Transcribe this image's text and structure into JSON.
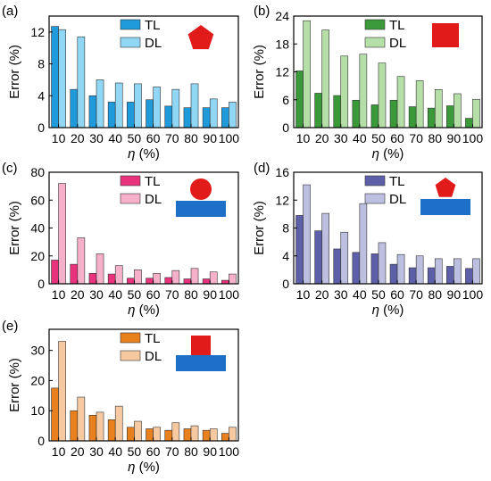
{
  "chart_data": [
    {
      "panel_label": "(a)",
      "type": "bar",
      "icon": "red-pentagon",
      "categories": [
        "10",
        "20",
        "30",
        "40",
        "50",
        "60",
        "70",
        "80",
        "90",
        "100"
      ],
      "series": [
        {
          "name": "TL",
          "values": [
            12.7,
            4.8,
            4.0,
            3.2,
            3.2,
            3.5,
            2.7,
            2.5,
            2.5,
            2.5
          ],
          "color": "#1f9bdc"
        },
        {
          "name": "DL",
          "values": [
            12.3,
            11.4,
            6.0,
            5.6,
            5.5,
            5.1,
            4.8,
            5.5,
            3.6,
            3.2
          ],
          "color": "#8fd7f5"
        }
      ],
      "xlabel_symbol": "η",
      "xlabel_unit": "(%)",
      "ylabel": "Error (%)",
      "ylim": [
        0,
        14
      ],
      "yticks": [
        "0",
        "4",
        "8",
        "12"
      ],
      "ytick_values": [
        0,
        4,
        8,
        12
      ]
    },
    {
      "panel_label": "(b)",
      "type": "bar",
      "icon": "red-square",
      "categories": [
        "10",
        "20",
        "30",
        "40",
        "50",
        "60",
        "70",
        "80",
        "90",
        "100"
      ],
      "series": [
        {
          "name": "TL",
          "values": [
            12.2,
            7.4,
            6.9,
            5.9,
            4.9,
            5.9,
            4.5,
            4.2,
            4.7,
            2.0
          ],
          "color": "#3a9a3a"
        },
        {
          "name": "DL",
          "values": [
            23.0,
            21.0,
            15.4,
            15.8,
            13.9,
            11.0,
            10.1,
            8.2,
            7.3,
            6.1
          ],
          "color": "#b6dfa8"
        }
      ],
      "xlabel_symbol": "η",
      "xlabel_unit": "(%)",
      "ylabel": "Error (%)",
      "ylim": [
        0,
        24
      ],
      "yticks": [
        "0",
        "6",
        "12",
        "18",
        "24"
      ],
      "ytick_values": [
        0,
        6,
        12,
        18,
        24
      ]
    },
    {
      "panel_label": "(c)",
      "type": "bar",
      "icon": "red-circle-on-blue-plate",
      "categories": [
        "10",
        "20",
        "30",
        "40",
        "50",
        "60",
        "70",
        "80",
        "90",
        "100"
      ],
      "series": [
        {
          "name": "TL",
          "values": [
            17.0,
            14.0,
            7.5,
            7.0,
            4.0,
            4.0,
            4.5,
            3.5,
            3.5,
            2.5
          ],
          "color": "#e8327c"
        },
        {
          "name": "DL",
          "values": [
            72.0,
            33.0,
            21.5,
            13.0,
            10.0,
            7.5,
            9.5,
            11.0,
            8.5,
            7.0
          ],
          "color": "#f6b0ca"
        }
      ],
      "xlabel_symbol": "η",
      "xlabel_unit": "(%)",
      "ylabel": "Error (%)",
      "ylim": [
        0,
        80
      ],
      "yticks": [
        "0",
        "20",
        "40",
        "60",
        "80"
      ],
      "ytick_values": [
        0,
        20,
        40,
        60,
        80
      ]
    },
    {
      "panel_label": "(d)",
      "type": "bar",
      "icon": "red-pentagon-on-blue-plate",
      "categories": [
        "10",
        "20",
        "30",
        "40",
        "50",
        "60",
        "70",
        "80",
        "90",
        "100"
      ],
      "series": [
        {
          "name": "TL",
          "values": [
            9.8,
            7.6,
            5.0,
            4.5,
            4.3,
            2.8,
            2.3,
            2.3,
            2.5,
            2.2
          ],
          "color": "#5d5fa8"
        },
        {
          "name": "DL",
          "values": [
            14.2,
            10.1,
            7.4,
            11.5,
            5.9,
            4.2,
            4.0,
            3.6,
            3.6,
            3.6
          ],
          "color": "#bcbfe0"
        }
      ],
      "xlabel_symbol": "η",
      "xlabel_unit": "(%)",
      "ylabel": "Error (%)",
      "ylim": [
        0,
        16
      ],
      "yticks": [
        "0",
        "4",
        "8",
        "12",
        "16"
      ],
      "ytick_values": [
        0,
        4,
        8,
        12,
        16
      ]
    },
    {
      "panel_label": "(e)",
      "type": "bar",
      "icon": "red-square-on-blue-plate",
      "categories": [
        "10",
        "20",
        "30",
        "40",
        "50",
        "60",
        "70",
        "80",
        "90",
        "100"
      ],
      "series": [
        {
          "name": "TL",
          "values": [
            17.5,
            10.0,
            8.5,
            7.0,
            4.5,
            4.0,
            3.5,
            4.0,
            3.5,
            2.5
          ],
          "color": "#e8801e"
        },
        {
          "name": "DL",
          "values": [
            33.0,
            14.5,
            9.5,
            11.5,
            6.5,
            4.5,
            6.0,
            5.0,
            4.0,
            4.5
          ],
          "color": "#f7c9a0"
        }
      ],
      "xlabel_symbol": "η",
      "xlabel_unit": "(%)",
      "ylabel": "Error (%)",
      "ylim": [
        0,
        37
      ],
      "yticks": [
        "0",
        "10",
        "20",
        "30"
      ],
      "ytick_values": [
        0,
        10,
        20,
        30
      ]
    }
  ]
}
